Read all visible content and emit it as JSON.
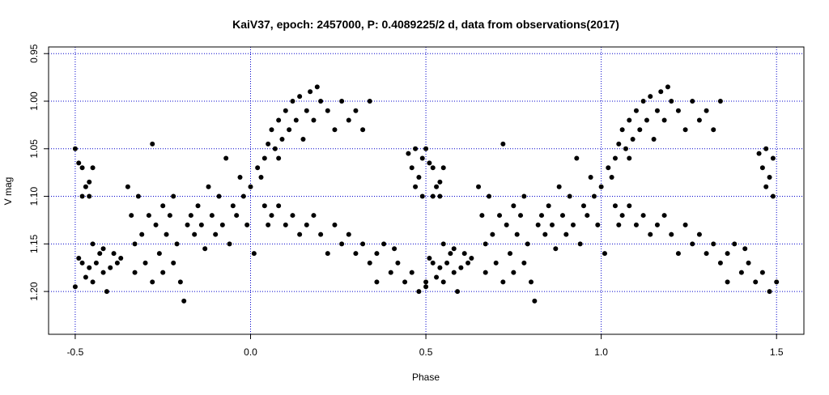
{
  "chart_data": {
    "type": "scatter",
    "title": "KaiV37, epoch: 2457000, P: 0.4089225/2 d, data from observations(2017)",
    "x_label": "Phase",
    "y_label": "V mag",
    "color": "#000000",
    "grid": true,
    "grid_color": "#0000cc",
    "y_inverted": true,
    "xlim": [
      -0.576,
      1.578
    ],
    "ylim": [
      0.943,
      1.245
    ],
    "xticks": [
      -0.5,
      {
        "value": 0,
        "label": "0.0"
      },
      0.5,
      {
        "value": 1,
        "label": "1.0"
      },
      1.5
    ],
    "yticks": [
      0.95,
      {
        "value": 1,
        "label": "1.00"
      },
      1.05,
      {
        "value": 1.1,
        "label": "1.10"
      },
      1.15,
      {
        "value": 1.2,
        "label": "1.20"
      }
    ],
    "x": [
      -0.5,
      -0.49,
      -0.48,
      -0.47,
      -0.46,
      -0.45,
      -0.48,
      -0.46,
      -0.5,
      -0.49,
      -0.48,
      -0.47,
      -0.46,
      -0.45,
      -0.44,
      -0.43,
      -0.42,
      -0.41,
      -0.4,
      -0.39,
      -0.38,
      -0.37,
      -0.45,
      -0.42,
      -0.35,
      -0.34,
      -0.33,
      -0.33,
      -0.32,
      -0.31,
      -0.3,
      -0.29,
      -0.28,
      -0.28,
      -0.27,
      -0.26,
      -0.25,
      -0.25,
      -0.24,
      -0.23,
      -0.22,
      -0.22,
      -0.21,
      -0.2,
      -0.19,
      -0.18,
      -0.17,
      -0.16,
      -0.15,
      -0.14,
      -0.13,
      -0.12,
      -0.11,
      -0.1,
      -0.09,
      -0.08,
      -0.07,
      -0.06,
      -0.05,
      -0.04,
      -0.03,
      -0.02,
      -0.01,
      0,
      0.01,
      0.02,
      0.03,
      0.04,
      0.05,
      0.06,
      0.07,
      0.08,
      0.09,
      0.1,
      0.11,
      0.12,
      0.13,
      0.14,
      0.15,
      0.16,
      0.17,
      0.18,
      0.19,
      0.2,
      0.22,
      0.24,
      0.26,
      0.28,
      0.3,
      0.32,
      0.34,
      0.05,
      0.08,
      0.04,
      0.06,
      0.08,
      0.1,
      0.12,
      0.14,
      0.16,
      0.18,
      0.2,
      0.22,
      0.24,
      0.26,
      0.28,
      0.3,
      0.32,
      0.34,
      0.36,
      0.38,
      0.4,
      0.42,
      0.44,
      0.46,
      0.48,
      0.5,
      0.36,
      0.41,
      0.45,
      0.46,
      0.47,
      0.48,
      0.49,
      0.49,
      0.47,
      0.5,
      0.51,
      0.52,
      0.53,
      0.54,
      0.55,
      0.52,
      0.54,
      0.5,
      0.51,
      0.52,
      0.53,
      0.54,
      0.55,
      0.56,
      0.57,
      0.58,
      0.59,
      0.6,
      0.61,
      0.62,
      0.63,
      0.55,
      0.58,
      0.65,
      0.66,
      0.67,
      0.67,
      0.68,
      0.69,
      0.7,
      0.71,
      0.72,
      0.72,
      0.73,
      0.74,
      0.75,
      0.75,
      0.76,
      0.77,
      0.78,
      0.78,
      0.79,
      0.8,
      0.81,
      0.82,
      0.83,
      0.84,
      0.85,
      0.86,
      0.87,
      0.88,
      0.89,
      0.9,
      0.91,
      0.92,
      0.93,
      0.94,
      0.95,
      0.96,
      0.97,
      0.98,
      0.99,
      1,
      1.01,
      1.02,
      1.03,
      1.04,
      1.05,
      1.06,
      1.07,
      1.08,
      1.09,
      1.1,
      1.11,
      1.12,
      1.13,
      1.14,
      1.15,
      1.16,
      1.17,
      1.18,
      1.19,
      1.2,
      1.22,
      1.24,
      1.26,
      1.28,
      1.3,
      1.32,
      1.34,
      1.05,
      1.08,
      1.04,
      1.06,
      1.08,
      1.1,
      1.12,
      1.14,
      1.16,
      1.18,
      1.2,
      1.22,
      1.24,
      1.26,
      1.28,
      1.3,
      1.32,
      1.34,
      1.36,
      1.38,
      1.4,
      1.42,
      1.44,
      1.46,
      1.48,
      1.5,
      1.36,
      1.41,
      1.45,
      1.46,
      1.47,
      1.48,
      1.49,
      1.49,
      1.47
    ],
    "values": [
      1.05,
      1.065,
      1.07,
      1.09,
      1.085,
      1.07,
      1.1,
      1.1,
      1.195,
      1.165,
      1.17,
      1.185,
      1.175,
      1.19,
      1.17,
      1.16,
      1.18,
      1.2,
      1.175,
      1.16,
      1.17,
      1.165,
      1.15,
      1.155,
      1.09,
      1.12,
      1.15,
      1.18,
      1.1,
      1.14,
      1.17,
      1.12,
      1.045,
      1.19,
      1.13,
      1.16,
      1.11,
      1.18,
      1.14,
      1.12,
      1.17,
      1.1,
      1.15,
      1.19,
      1.21,
      1.13,
      1.12,
      1.14,
      1.11,
      1.13,
      1.155,
      1.09,
      1.12,
      1.14,
      1.1,
      1.13,
      1.06,
      1.15,
      1.11,
      1.12,
      1.08,
      1.1,
      1.13,
      1.09,
      1.16,
      1.07,
      1.08,
      1.06,
      1.045,
      1.03,
      1.05,
      1.02,
      1.04,
      1.01,
      1.03,
      1,
      1.02,
      0.995,
      1.04,
      1.01,
      0.99,
      1.02,
      0.985,
      1,
      1.01,
      1.03,
      1,
      1.02,
      1.01,
      1.03,
      1,
      1.13,
      1.06,
      1.11,
      1.12,
      1.11,
      1.13,
      1.12,
      1.14,
      1.13,
      1.12,
      1.14,
      1.16,
      1.13,
      1.15,
      1.14,
      1.16,
      1.15,
      1.17,
      1.16,
      1.15,
      1.18,
      1.17,
      1.19,
      1.18,
      1.2,
      1.19,
      1.19,
      1.155,
      1.055,
      1.07,
      1.05,
      1.08,
      1.06,
      1.1,
      1.09,
      1.05,
      1.065,
      1.07,
      1.09,
      1.085,
      1.07,
      1.1,
      1.1,
      1.195,
      1.165,
      1.17,
      1.185,
      1.175,
      1.19,
      1.17,
      1.16,
      1.18,
      1.2,
      1.175,
      1.16,
      1.17,
      1.165,
      1.15,
      1.155,
      1.09,
      1.12,
      1.15,
      1.18,
      1.1,
      1.14,
      1.17,
      1.12,
      1.045,
      1.19,
      1.13,
      1.16,
      1.11,
      1.18,
      1.14,
      1.12,
      1.17,
      1.1,
      1.15,
      1.19,
      1.21,
      1.13,
      1.12,
      1.14,
      1.11,
      1.13,
      1.155,
      1.09,
      1.12,
      1.14,
      1.1,
      1.13,
      1.06,
      1.15,
      1.11,
      1.12,
      1.08,
      1.1,
      1.13,
      1.09,
      1.16,
      1.07,
      1.08,
      1.06,
      1.045,
      1.03,
      1.05,
      1.02,
      1.04,
      1.01,
      1.03,
      1,
      1.02,
      0.995,
      1.04,
      1.01,
      0.99,
      1.02,
      0.985,
      1,
      1.01,
      1.03,
      1,
      1.02,
      1.01,
      1.03,
      1,
      1.13,
      1.06,
      1.11,
      1.12,
      1.11,
      1.13,
      1.12,
      1.14,
      1.13,
      1.12,
      1.14,
      1.16,
      1.13,
      1.15,
      1.14,
      1.16,
      1.15,
      1.17,
      1.16,
      1.15,
      1.18,
      1.17,
      1.19,
      1.18,
      1.2,
      1.19,
      1.19,
      1.155,
      1.055,
      1.07,
      1.05,
      1.08,
      1.06,
      1.1,
      1.09
    ]
  }
}
